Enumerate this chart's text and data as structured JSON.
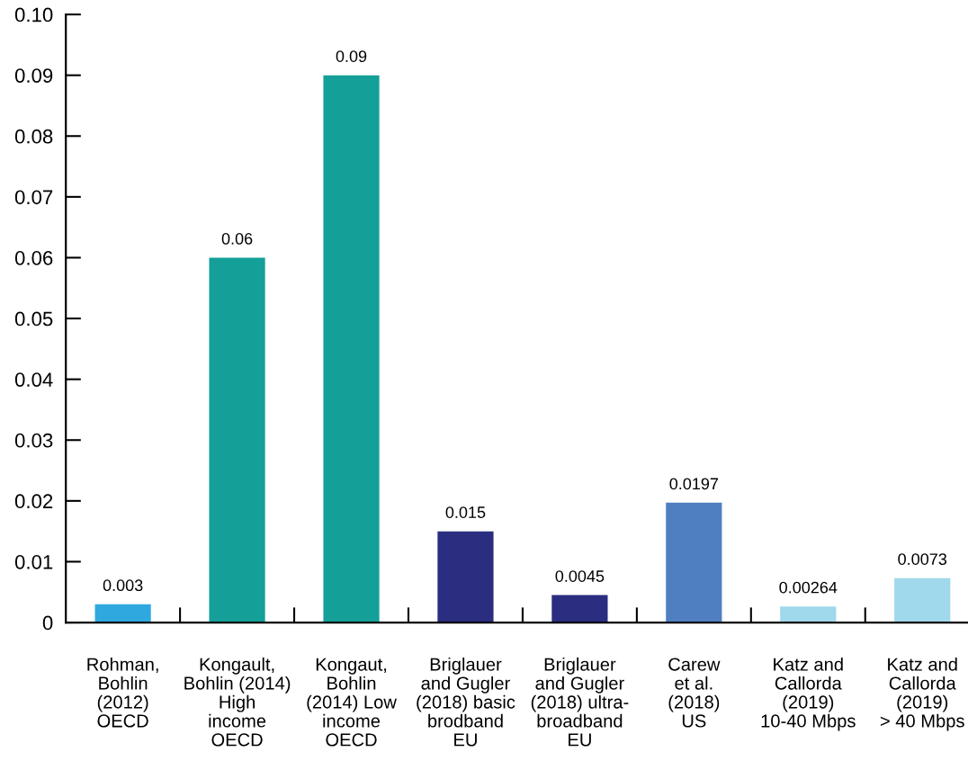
{
  "chart_data": {
    "type": "bar",
    "categories": [
      "Rohman,\nBohlin\n(2012)\nOECD",
      "Kongault,\nBohlin (2014)\nHigh\nincome\nOECD",
      "Kongaut,\nBohlin\n(2014) Low\nincome\nOECD",
      "Briglauer\nand Gugler\n(2018) basic\nbrodband\nEU",
      "Briglauer\nand Gugler\n(2018) ultra-\nbroadband\nEU",
      "Carew\net al.\n(2018)\nUS",
      "Katz and\nCallorda\n(2019)\n10-40 Mbps",
      "Katz and\nCallorda\n(2019)\n> 40 Mbps"
    ],
    "values": [
      0.003,
      0.06,
      0.09,
      0.015,
      0.0045,
      0.0197,
      0.00264,
      0.0073
    ],
    "colors": [
      "#2fa8e0",
      "#14a098",
      "#14a098",
      "#2b2d80",
      "#2b2d80",
      "#4f7fc1",
      "#a0d8ec",
      "#a0d8ec"
    ],
    "ylim": [
      0,
      0.1
    ],
    "yticks": [
      0,
      0.01,
      0.02,
      0.03,
      0.04,
      0.05,
      0.06,
      0.07,
      0.08,
      0.09,
      {
        "value": 0.1,
        "label": "0.10"
      }
    ],
    "data_labels": true,
    "grid": false,
    "legend": false
  }
}
